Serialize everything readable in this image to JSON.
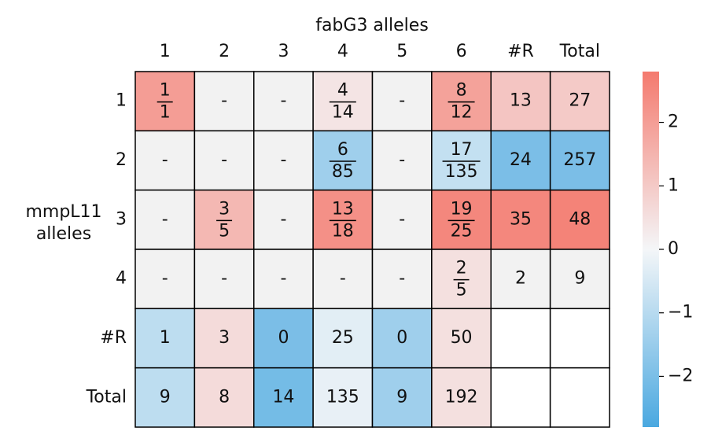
{
  "chart_data": {
    "type": "heatmap",
    "xlabel": "fabG3 alleles",
    "ylabel": "mmpL11 alleles",
    "x_categories": [
      "1",
      "2",
      "3",
      "4",
      "5",
      "6",
      "#R",
      "Total"
    ],
    "y_categories": [
      "1",
      "2",
      "3",
      "4",
      "#R",
      "Total"
    ],
    "cells": [
      [
        {
          "num": 1,
          "den": 1,
          "value": 2.0
        },
        {
          "text": "-",
          "value": null
        },
        {
          "text": "-",
          "value": null
        },
        {
          "num": 4,
          "den": 14,
          "value": 0.4
        },
        {
          "text": "-",
          "value": null
        },
        {
          "num": 8,
          "den": 12,
          "value": 1.9
        },
        {
          "count": 13,
          "value": 1.1
        },
        {
          "count": 27,
          "value": 1.0
        }
      ],
      [
        {
          "text": "-",
          "value": null
        },
        {
          "text": "-",
          "value": null
        },
        {
          "text": "-",
          "value": null
        },
        {
          "num": 6,
          "den": 85,
          "value": -1.4
        },
        {
          "text": "-",
          "value": null
        },
        {
          "num": 17,
          "den": 135,
          "value": -0.8
        },
        {
          "count": 24,
          "value": -2.0
        },
        {
          "count": 257,
          "value": -2.0
        }
      ],
      [
        {
          "text": "-",
          "value": null
        },
        {
          "num": 3,
          "den": 5,
          "value": 1.4
        },
        {
          "text": "-",
          "value": null
        },
        {
          "num": 13,
          "den": 18,
          "value": 2.3
        },
        {
          "text": "-",
          "value": null
        },
        {
          "num": 19,
          "den": 25,
          "value": 2.5
        },
        {
          "count": 35,
          "value": 2.5
        },
        {
          "count": 48,
          "value": 2.6
        }
      ],
      [
        {
          "text": "-",
          "value": null
        },
        {
          "text": "-",
          "value": null
        },
        {
          "text": "-",
          "value": null
        },
        {
          "text": "-",
          "value": null
        },
        {
          "text": "-",
          "value": null
        },
        {
          "num": 2,
          "den": 5,
          "value": 0.5
        },
        {
          "count": 2,
          "value": null
        },
        {
          "count": 9,
          "value": null
        }
      ],
      [
        {
          "count": 1,
          "value": -0.9
        },
        {
          "count": 3,
          "value": 0.6
        },
        {
          "count": 0,
          "value": -2.0
        },
        {
          "count": 25,
          "value": -0.3
        },
        {
          "count": 0,
          "value": -1.4
        },
        {
          "count": 50,
          "value": 0.5
        },
        null,
        null
      ],
      [
        {
          "count": 9,
          "value": -0.9
        },
        {
          "count": 8,
          "value": 0.6
        },
        {
          "count": 14,
          "value": -2.1
        },
        {
          "count": 135,
          "value": -0.2
        },
        {
          "count": 9,
          "value": -1.4
        },
        {
          "count": 192,
          "value": 0.5
        },
        null,
        null
      ]
    ],
    "clim": [
      -2.8,
      2.8
    ],
    "cticks": [
      {
        "value": -2,
        "label": "−2"
      },
      {
        "value": -1,
        "label": "−1"
      },
      0,
      1,
      2
    ],
    "low_color": "#4aa8e0",
    "mid_color": "#f4f6f8",
    "high_color": "#f47a6e",
    "missing_color": "#f2f2f2"
  }
}
